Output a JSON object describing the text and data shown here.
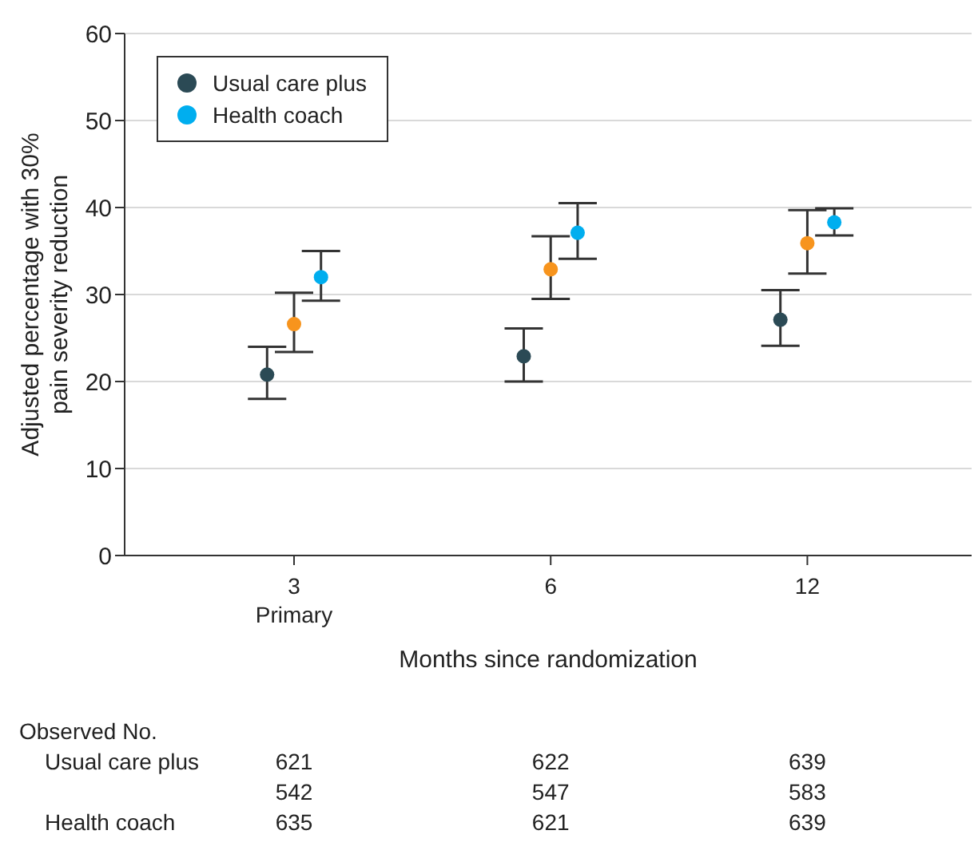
{
  "chart_data": {
    "type": "scatter",
    "categories": [
      "3\nPrimary",
      "6",
      "12"
    ],
    "xlabel": "Months since randomization",
    "ylabel": "Adjusted percentage with 30%\npain severity reduction",
    "ylim": [
      0,
      60
    ],
    "yticks": [
      0,
      10,
      20,
      30,
      40,
      50,
      60
    ],
    "grid": "y",
    "legend": "top left",
    "marker": "circle",
    "series": [
      {
        "name": "Usual care plus",
        "color": "#2b4a55",
        "values": [
          20.8,
          22.9,
          27.1
        ],
        "errors": [
          [
            18,
            24
          ],
          [
            20,
            26.1
          ],
          [
            24.1,
            30.5
          ]
        ]
      },
      {
        "color": "#f7941d",
        "values": [
          26.6,
          32.9,
          35.9
        ],
        "errors": [
          [
            23.4,
            30.2
          ],
          [
            29.5,
            36.7
          ],
          [
            32.4,
            39.7
          ]
        ]
      },
      {
        "name": "Health coach",
        "color": "#00aeef",
        "values": [
          32,
          37.1,
          38.3
        ],
        "errors": [
          [
            29.3,
            35
          ],
          [
            34.1,
            40.5
          ],
          [
            36.8,
            39.9
          ]
        ]
      }
    ],
    "annotations": [
      "Observed No.",
      "Usual care plus\t621\t622\t639",
      "\t542\t547\t583",
      "Health coach\t635\t621\t639"
    ]
  }
}
